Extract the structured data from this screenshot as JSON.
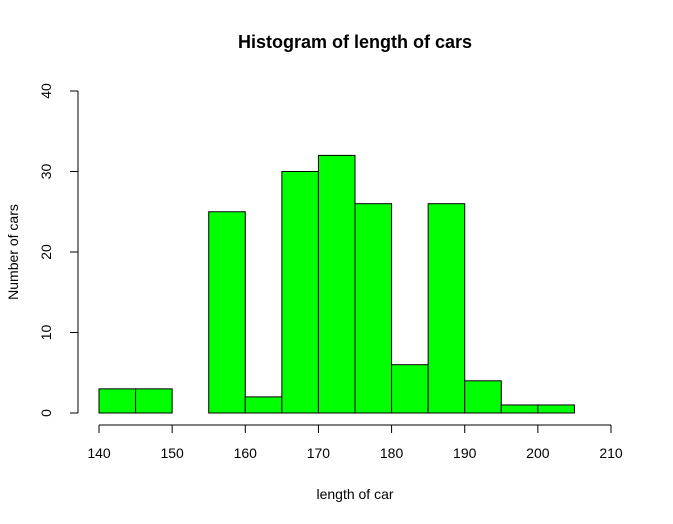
{
  "chart_data": {
    "type": "bar",
    "title": "Histogram of length of cars",
    "xlabel": "length of car",
    "ylabel": "Number of cars",
    "bar_color": "#00ff00",
    "bar_stroke": "#000000",
    "xlim": [
      140,
      210
    ],
    "ylim": [
      0,
      40
    ],
    "x_ticks": [
      140,
      150,
      160,
      170,
      180,
      190,
      200,
      210
    ],
    "y_ticks": [
      0,
      10,
      20,
      30,
      40
    ],
    "bins": [
      {
        "from": 140,
        "to": 145,
        "count": 3
      },
      {
        "from": 145,
        "to": 150,
        "count": 3
      },
      {
        "from": 150,
        "to": 155,
        "count": 0
      },
      {
        "from": 155,
        "to": 160,
        "count": 25
      },
      {
        "from": 160,
        "to": 165,
        "count": 2
      },
      {
        "from": 165,
        "to": 170,
        "count": 30
      },
      {
        "from": 170,
        "to": 175,
        "count": 32
      },
      {
        "from": 175,
        "to": 180,
        "count": 26
      },
      {
        "from": 180,
        "to": 185,
        "count": 6
      },
      {
        "from": 185,
        "to": 190,
        "count": 26
      },
      {
        "from": 190,
        "to": 195,
        "count": 4
      },
      {
        "from": 195,
        "to": 200,
        "count": 1
      },
      {
        "from": 200,
        "to": 205,
        "count": 1
      }
    ]
  }
}
